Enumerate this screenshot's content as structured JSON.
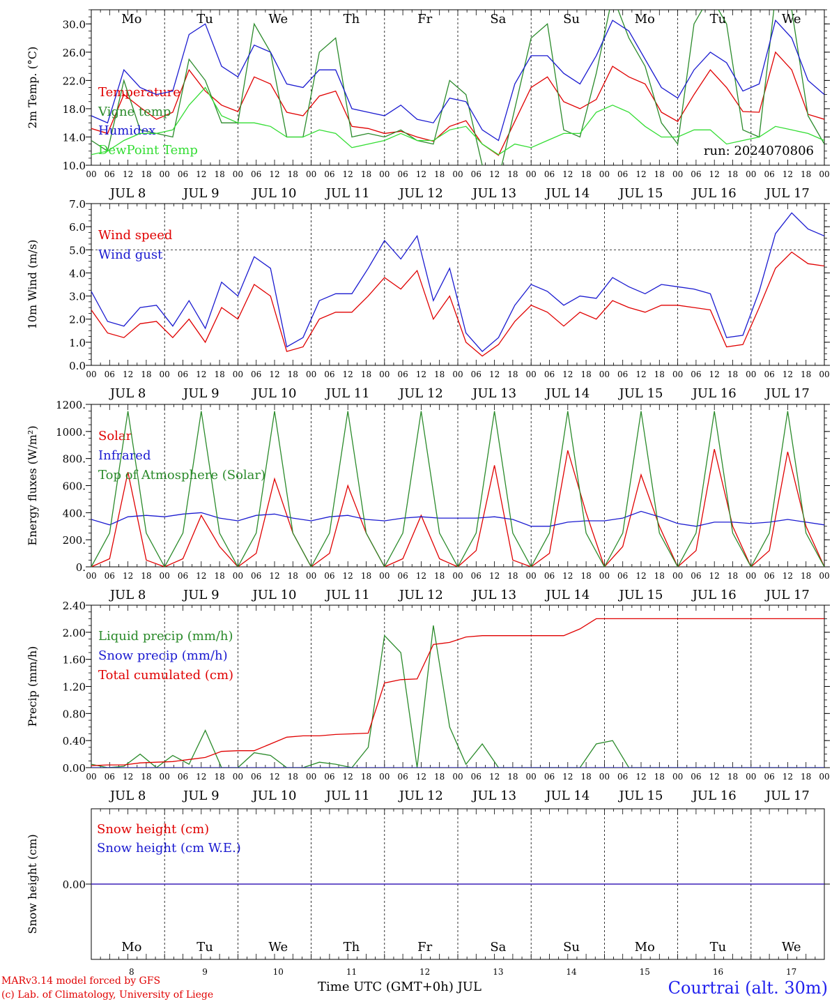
{
  "chart_data": [
    {
      "type": "line",
      "ylabel": "2m Temp. (°C)",
      "ylim": [
        10,
        32
      ],
      "yticks": [
        "10.0",
        "14.0",
        "18.0",
        "22.0",
        "26.0",
        "30.0"
      ],
      "x_start": "2024-07-08 00:00 UTC",
      "x_step_hours": 6,
      "day_labels": [
        "Mo",
        "Tu",
        "We",
        "Th",
        "Fr",
        "Sa",
        "Su",
        "Mo",
        "Tu",
        "We"
      ],
      "weekend_days": [
        "Sa",
        "Su"
      ],
      "date_labels": [
        "JUL  8",
        "JUL  9",
        "JUL 10",
        "JUL 11",
        "JUL 12",
        "JUL 13",
        "JUL 14",
        "JUL 15",
        "JUL 16",
        "JUL 17"
      ],
      "hour_ticks": [
        "00",
        "06",
        "12",
        "18"
      ],
      "run_label": "run: 2024070806",
      "series": [
        {
          "name": "Temperature",
          "color": "#e00000",
          "values": [
            15.2,
            14.5,
            20.0,
            18.2,
            16.5,
            17.5,
            23.5,
            20.5,
            18.5,
            17.6,
            22.5,
            21.5,
            17.5,
            17.0,
            19.8,
            20.5,
            15.5,
            15.2,
            14.5,
            14.8,
            14.0,
            13.4,
            15.5,
            16.3,
            13.0,
            11.4,
            16.2,
            21.0,
            22.5,
            19.0,
            18.0,
            19.3,
            24.0,
            22.5,
            21.5,
            17.5,
            16.2,
            20.0,
            23.5,
            21.0,
            17.6,
            17.5,
            26.0,
            23.5,
            17.2,
            16.5
          ]
        },
        {
          "name": "Vigne temp",
          "color": "#2a8a2a",
          "values": [
            13.5,
            12.0,
            22.0,
            15.0,
            14.5,
            14.0,
            25.0,
            22.0,
            16.0,
            16.0,
            30.0,
            26.0,
            14.0,
            14.0,
            26.0,
            28.0,
            14.0,
            14.5,
            14.0,
            15.0,
            13.5,
            13.0,
            22.0,
            20.0,
            10.0,
            8.0,
            18.0,
            28.0,
            30.0,
            15.0,
            14.0,
            23.0,
            34.0,
            28.0,
            24.0,
            16.0,
            13.0,
            30.0,
            34.0,
            30.0,
            15.0,
            14.0,
            34.0,
            32.0,
            17.0,
            13.0
          ]
        },
        {
          "name": "Humidex",
          "color": "#1a1ad0",
          "values": [
            17.0,
            16.0,
            23.5,
            21.0,
            20.0,
            20.5,
            28.5,
            30.0,
            24.0,
            22.5,
            27.0,
            26.0,
            21.5,
            21.0,
            23.5,
            23.5,
            18.0,
            17.5,
            17.0,
            18.5,
            16.5,
            16.0,
            19.5,
            19.0,
            15.0,
            13.5,
            21.5,
            25.5,
            25.5,
            23.0,
            21.5,
            25.5,
            30.5,
            29.0,
            25.0,
            21.0,
            19.5,
            23.5,
            26.0,
            24.5,
            20.5,
            21.5,
            30.5,
            28.0,
            22.0,
            20.0
          ]
        },
        {
          "name": "DewPoint Temp",
          "color": "#33dd33",
          "values": [
            11.5,
            12.0,
            13.5,
            14.5,
            14.5,
            15.0,
            18.5,
            21.0,
            17.0,
            16.0,
            16.0,
            15.5,
            14.0,
            14.0,
            15.0,
            14.5,
            12.5,
            13.0,
            13.5,
            14.5,
            13.5,
            13.5,
            15.0,
            15.5,
            13.0,
            11.5,
            13.0,
            12.5,
            13.5,
            14.5,
            14.5,
            17.5,
            18.5,
            17.5,
            15.5,
            14.0,
            14.0,
            15.0,
            15.0,
            13.0,
            13.5,
            14.0,
            15.5,
            15.0,
            14.5,
            13.5
          ]
        }
      ]
    },
    {
      "type": "line",
      "ylabel": "10m Wind (m/s)",
      "ylim": [
        0,
        7
      ],
      "yticks": [
        "0.0",
        "1.0",
        "2.0",
        "3.0",
        "4.0",
        "5.0",
        "6.0",
        "7.0"
      ],
      "reference_line": 5.0,
      "date_labels": [
        "JUL  8",
        "JUL  9",
        "JUL 10",
        "JUL 11",
        "JUL 12",
        "JUL 13",
        "JUL 14",
        "JUL 15",
        "JUL 16",
        "JUL 17"
      ],
      "hour_ticks": [
        "00",
        "06",
        "12",
        "18"
      ],
      "series": [
        {
          "name": "Wind speed",
          "color": "#e00000",
          "values": [
            2.4,
            1.4,
            1.2,
            1.8,
            1.9,
            1.2,
            2.0,
            1.0,
            2.5,
            2.0,
            3.5,
            3.0,
            0.6,
            0.8,
            2.0,
            2.3,
            2.3,
            3.0,
            3.8,
            3.3,
            4.1,
            2.0,
            3.0,
            1.0,
            0.4,
            0.9,
            1.9,
            2.6,
            2.3,
            1.7,
            2.3,
            2.0,
            2.8,
            2.5,
            2.3,
            2.6,
            2.6,
            2.5,
            2.4,
            0.8,
            0.9,
            2.5,
            4.2,
            4.9,
            4.4,
            4.3
          ]
        },
        {
          "name": "Wind gust",
          "color": "#1a1ad0",
          "values": [
            3.2,
            1.9,
            1.7,
            2.5,
            2.6,
            1.7,
            2.8,
            1.6,
            3.6,
            3.0,
            4.7,
            4.2,
            0.8,
            1.2,
            2.8,
            3.1,
            3.1,
            4.2,
            5.4,
            4.6,
            5.6,
            2.8,
            4.2,
            1.4,
            0.6,
            1.2,
            2.6,
            3.5,
            3.2,
            2.6,
            3.0,
            2.9,
            3.8,
            3.4,
            3.1,
            3.5,
            3.4,
            3.3,
            3.1,
            1.2,
            1.3,
            3.2,
            5.7,
            6.6,
            5.9,
            5.6
          ]
        }
      ]
    },
    {
      "type": "line",
      "ylabel": "Energy fluxes (W/m²)",
      "ylim": [
        0,
        1200
      ],
      "yticks": [
        "0.",
        "200.",
        "400.",
        "600.",
        "800.",
        "1000.",
        "1200."
      ],
      "date_labels": [
        "JUL  8",
        "JUL  9",
        "JUL 10",
        "JUL 11",
        "JUL 12",
        "JUL 13",
        "JUL 14",
        "JUL 15",
        "JUL 16",
        "JUL 17"
      ],
      "hour_ticks": [
        "00",
        "06",
        "12",
        "18"
      ],
      "series": [
        {
          "name": "Solar",
          "color": "#e00000",
          "values": [
            0,
            60,
            700,
            50,
            0,
            60,
            380,
            150,
            0,
            100,
            650,
            250,
            0,
            100,
            600,
            250,
            0,
            60,
            380,
            60,
            0,
            120,
            750,
            50,
            0,
            100,
            860,
            400,
            0,
            150,
            680,
            300,
            0,
            120,
            870,
            300,
            0,
            120,
            850,
            300,
            0
          ]
        },
        {
          "name": "Infrared",
          "color": "#1a1ad0",
          "values": [
            350,
            310,
            370,
            380,
            370,
            390,
            400,
            360,
            340,
            380,
            390,
            360,
            340,
            370,
            380,
            350,
            340,
            360,
            370,
            360,
            360,
            360,
            370,
            350,
            300,
            300,
            330,
            340,
            340,
            360,
            410,
            370,
            320,
            300,
            330,
            330,
            320,
            330,
            350,
            330,
            310
          ]
        },
        {
          "name": "Top of Atmosphere (Solar)",
          "color": "#2a8a2a",
          "values": [
            0,
            250,
            1150,
            250,
            0,
            250,
            1150,
            250,
            0,
            250,
            1150,
            250,
            0,
            250,
            1150,
            250,
            0,
            250,
            1150,
            250,
            0,
            250,
            1150,
            250,
            0,
            250,
            1150,
            250,
            0,
            250,
            1150,
            250,
            0,
            250,
            1150,
            250,
            0,
            250,
            1150,
            250,
            0
          ]
        }
      ]
    },
    {
      "type": "line",
      "ylabel": "Precip (mm/h)",
      "ylim": [
        0,
        2.4
      ],
      "yticks": [
        "0.00",
        "0.40",
        "0.80",
        "1.20",
        "1.60",
        "2.00",
        "2.40"
      ],
      "date_labels": [
        "JUL  8",
        "JUL  9",
        "JUL 10",
        "JUL 11",
        "JUL 12",
        "JUL 13",
        "JUL 14",
        "JUL 15",
        "JUL 16",
        "JUL 17"
      ],
      "hour_ticks": [
        "00",
        "06",
        "12",
        "18"
      ],
      "series": [
        {
          "name": "Liquid precip (mm/h)",
          "color": "#2a8a2a",
          "values": [
            0.05,
            0.0,
            0.02,
            0.2,
            0.0,
            0.18,
            0.05,
            0.55,
            0.0,
            0.0,
            0.22,
            0.18,
            0.0,
            0.0,
            0.08,
            0.05,
            0.0,
            0.3,
            1.95,
            1.7,
            0.0,
            2.1,
            0.6,
            0.05,
            0.35,
            0.0,
            0.0,
            0.0,
            0.0,
            0.0,
            0.0,
            0.35,
            0.4,
            0.0,
            0.0,
            0.0,
            0.0,
            0.0,
            0.0,
            0.0,
            0.0,
            0.0,
            0.0,
            0.0,
            0.0,
            0.0
          ]
        },
        {
          "name": "Snow precip (mm/h)",
          "color": "#1a1ad0",
          "values": [
            0,
            0,
            0,
            0,
            0,
            0,
            0,
            0,
            0,
            0,
            0,
            0,
            0,
            0,
            0,
            0,
            0,
            0,
            0,
            0,
            0,
            0,
            0,
            0,
            0,
            0,
            0,
            0,
            0,
            0,
            0,
            0,
            0,
            0,
            0,
            0,
            0,
            0,
            0,
            0,
            0,
            0,
            0,
            0,
            0,
            0
          ]
        },
        {
          "name": "Total cumulated (cm)",
          "color": "#e00000",
          "values": [
            0.03,
            0.04,
            0.04,
            0.07,
            0.08,
            0.09,
            0.12,
            0.15,
            0.24,
            0.25,
            0.25,
            0.35,
            0.45,
            0.47,
            0.47,
            0.49,
            0.5,
            0.51,
            1.25,
            1.3,
            1.31,
            1.82,
            1.85,
            1.93,
            1.95,
            1.95,
            1.95,
            1.95,
            1.95,
            1.95,
            2.05,
            2.2,
            2.2,
            2.2,
            2.2,
            2.2,
            2.2,
            2.2,
            2.2,
            2.2,
            2.2,
            2.2,
            2.2,
            2.2,
            2.2,
            2.2
          ]
        }
      ]
    },
    {
      "type": "line",
      "ylabel": "Snow height (cm)",
      "ylim": [
        -0.01,
        0.01
      ],
      "yticks": [
        "0.00"
      ],
      "day_labels": [
        "Mo",
        "Tu",
        "We",
        "Th",
        "Fr",
        "Sa",
        "Su",
        "Mo",
        "Tu",
        "We"
      ],
      "weekend_days": [
        "Sa",
        "Su"
      ],
      "day_numbers": [
        "8",
        "9",
        "10",
        "11",
        "12",
        "13",
        "14",
        "15",
        "16",
        "17"
      ],
      "xlabel": "Time UTC (GMT+0h) JUL",
      "series": [
        {
          "name": "Snow height (cm)",
          "color": "#e00000",
          "values": [
            0,
            0
          ]
        },
        {
          "name": "Snow height (cm W.E.)",
          "color": "#1a1ad0",
          "values": [
            0,
            0
          ]
        }
      ]
    }
  ],
  "footer": {
    "credit_line1": "MARv3.14 model forced by GFS",
    "credit_line2": "(c) Lab. of Climatology, University of Liege",
    "station": "Courtrai (alt. 30m)"
  }
}
